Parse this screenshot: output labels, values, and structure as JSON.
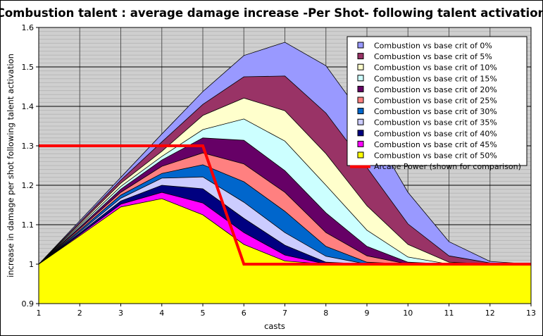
{
  "chart_data": {
    "type": "area",
    "title": "Combustion talent : average damage increase -Per Shot- following talent activation",
    "xlabel": "casts",
    "ylabel": "increase in damage per shot following talent activation",
    "x": [
      1,
      2,
      3,
      4,
      5,
      6,
      7,
      8,
      9,
      10,
      11,
      12,
      13
    ],
    "xlim": [
      1,
      13
    ],
    "ylim": [
      0.9,
      1.6
    ],
    "yticks": [
      "0.9",
      "1",
      "1.1",
      "1.2",
      "1.3",
      "1.4",
      "1.5",
      "1.6"
    ],
    "xticks": [
      "1",
      "2",
      "3",
      "4",
      "5",
      "6",
      "7",
      "8",
      "9",
      "10",
      "11",
      "12",
      "13"
    ],
    "grid": true,
    "legend_position": "top-right",
    "plot_background": "#CFCFCF",
    "series": [
      {
        "name": "Combustion vs base crit of  0%",
        "color": "#9999FF",
        "values": [
          1,
          1.11,
          1.22,
          1.33,
          1.4375,
          1.529,
          1.5625,
          1.503,
          1.36,
          1.182,
          1.057,
          1.007,
          1
        ]
      },
      {
        "name": "Combustion vs base crit of  5%",
        "color": "#993366",
        "values": [
          1,
          1.106,
          1.213,
          1.31,
          1.405,
          1.475,
          1.477,
          1.383,
          1.245,
          1.102,
          1.021,
          1.003,
          1
        ]
      },
      {
        "name": "Combustion vs base crit of 10%",
        "color": "#FFFFCC",
        "values": [
          1,
          1.102,
          1.205,
          1.286,
          1.377,
          1.421,
          1.389,
          1.28,
          1.148,
          1.05,
          1.005,
          1,
          1
        ]
      },
      {
        "name": "Combustion vs base crit of 15%",
        "color": "#CCFFFF",
        "values": [
          1,
          1.098,
          1.197,
          1.273,
          1.341,
          1.368,
          1.312,
          1.2,
          1.086,
          1.018,
          1,
          1,
          1
        ]
      },
      {
        "name": "Combustion vs base crit of 20%",
        "color": "#660066",
        "values": [
          1,
          1.094,
          1.19,
          1.264,
          1.32,
          1.314,
          1.237,
          1.13,
          1.045,
          1.005,
          1,
          1,
          1
        ]
      },
      {
        "name": "Combustion vs base crit of 25%",
        "color": "#FF8080",
        "values": [
          1,
          1.09,
          1.182,
          1.248,
          1.282,
          1.254,
          1.182,
          1.08,
          1.021,
          1,
          1,
          1,
          1
        ]
      },
      {
        "name": "Combustion vs base crit of 30%",
        "color": "#0066CC",
        "values": [
          1,
          1.086,
          1.175,
          1.23,
          1.252,
          1.209,
          1.134,
          1.045,
          1.005,
          1,
          1,
          1,
          1
        ]
      },
      {
        "name": "Combustion vs base crit of 35%",
        "color": "#CCCCFF",
        "values": [
          1,
          1.082,
          1.167,
          1.218,
          1.221,
          1.157,
          1.08,
          1.02,
          1,
          1,
          1,
          1,
          1
        ]
      },
      {
        "name": "Combustion vs base crit of 40%",
        "color": "#000080",
        "values": [
          1,
          1.079,
          1.16,
          1.2,
          1.191,
          1.116,
          1.048,
          1.005,
          1,
          1,
          1,
          1,
          1
        ]
      },
      {
        "name": "Combustion vs base crit of 45%",
        "color": "#FF00FF",
        "values": [
          1,
          1.075,
          1.152,
          1.182,
          1.155,
          1.08,
          1.023,
          1,
          1,
          1,
          1,
          1,
          1
        ]
      },
      {
        "name": "Combustion vs base crit of 50%",
        "color": "#FFFF00",
        "values": [
          1,
          1.072,
          1.145,
          1.166,
          1.125,
          1.05,
          1.008,
          1,
          1,
          1,
          1,
          1,
          1
        ]
      }
    ],
    "line_series": [
      {
        "name": "Arcane Power (shown for comparison)",
        "color": "#FF0000",
        "values": [
          1.3,
          1.3,
          1.3,
          1.3,
          1.3,
          1,
          1,
          1,
          1,
          1,
          1,
          1,
          1
        ]
      }
    ]
  }
}
